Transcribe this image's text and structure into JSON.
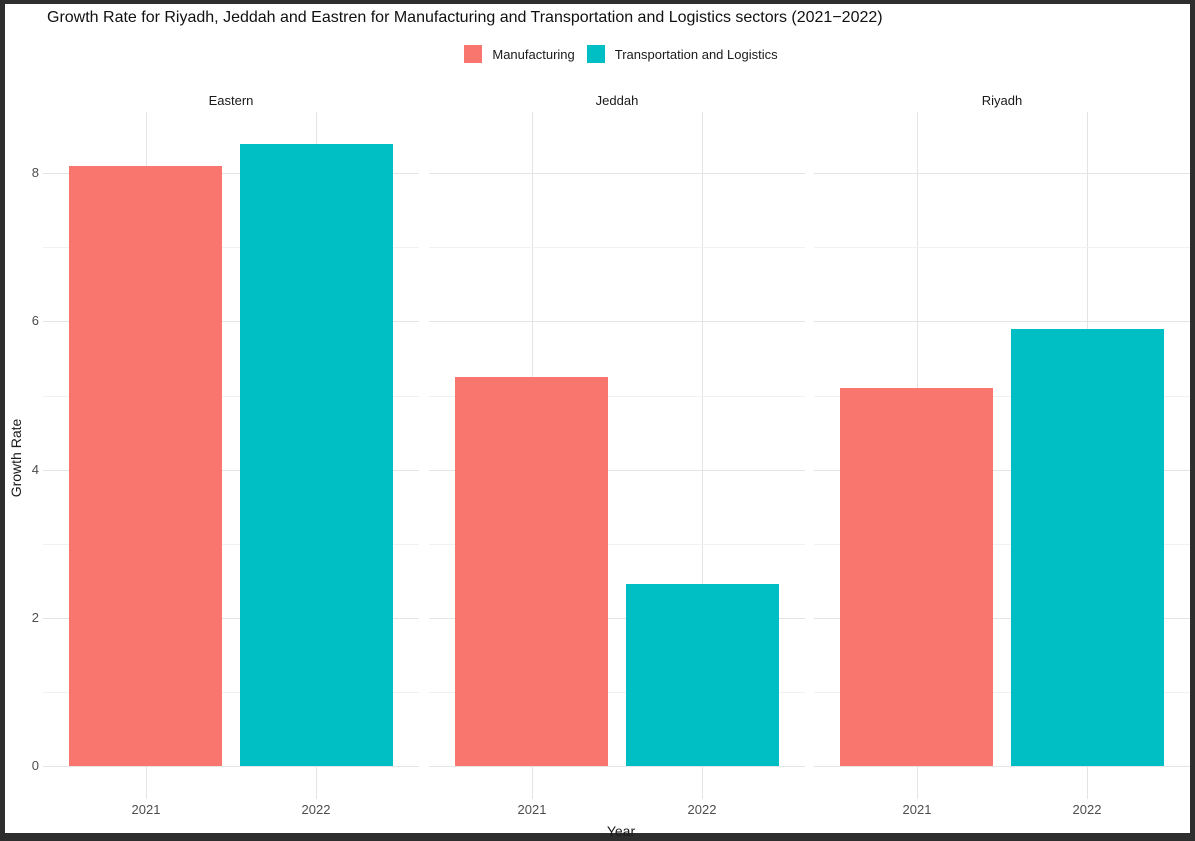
{
  "title": "Growth Rate for Riyadh, Jeddah and Eastren for Manufacturing and Transportation and Logistics sectors (2021−2022)",
  "legend": {
    "items": [
      {
        "label": "Manufacturing",
        "color": "#F8766D"
      },
      {
        "label": "Transportation and Logistics",
        "color": "#00BFC4"
      }
    ]
  },
  "axes": {
    "x_title": "Year",
    "y_title": "Growth Rate",
    "y_tick_labels": [
      "0",
      "2",
      "4",
      "6",
      "8"
    ],
    "x_tick_labels": [
      "2021",
      "2022"
    ]
  },
  "chart_data": {
    "type": "bar",
    "faceted_by": "region",
    "x": [
      "2021",
      "2022"
    ],
    "facets": [
      {
        "label": "Eastern",
        "bars": [
          {
            "x": "2021",
            "series": "Manufacturing",
            "value": 8.1
          },
          {
            "x": "2022",
            "series": "Transportation and Logistics",
            "value": 8.4
          }
        ]
      },
      {
        "label": "Jeddah",
        "bars": [
          {
            "x": "2021",
            "series": "Manufacturing",
            "value": 5.25
          },
          {
            "x": "2022",
            "series": "Transportation and Logistics",
            "value": 2.45
          }
        ]
      },
      {
        "label": "Riyadh",
        "bars": [
          {
            "x": "2021",
            "series": "Manufacturing",
            "value": 5.1
          },
          {
            "x": "2022",
            "series": "Transportation and Logistics",
            "value": 5.9
          }
        ]
      }
    ],
    "series_colors": {
      "Manufacturing": "#F8766D",
      "Transportation and Logistics": "#00BFC4"
    },
    "ylim": [
      0,
      8.85
    ],
    "grid": {
      "major_breaks": [
        0,
        2,
        4,
        6,
        8
      ],
      "minor_breaks": [
        1,
        3,
        5,
        7
      ]
    },
    "legend_position": "top",
    "title": "Growth Rate for Riyadh, Jeddah and Eastren for Manufacturing and Transportation and Logistics sectors (2021−2022)",
    "xlabel": "Year",
    "ylabel": "Growth Rate"
  }
}
